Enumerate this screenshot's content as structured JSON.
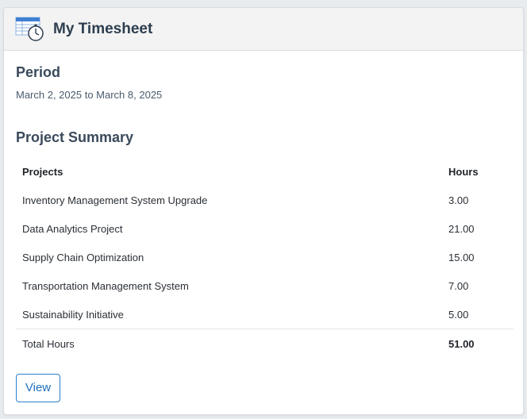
{
  "header": {
    "title": "My Timesheet",
    "icon": "timesheet-stopwatch-icon"
  },
  "period": {
    "heading": "Period",
    "range": "March 2, 2025 to March 8, 2025"
  },
  "summary": {
    "heading": "Project Summary",
    "columns": {
      "projects": "Projects",
      "hours": "Hours"
    },
    "rows": [
      {
        "project": "Inventory Management System Upgrade",
        "hours": "3.00"
      },
      {
        "project": "Data Analytics Project",
        "hours": "21.00"
      },
      {
        "project": "Supply Chain Optimization",
        "hours": "15.00"
      },
      {
        "project": "Transportation Management System",
        "hours": "7.00"
      },
      {
        "project": "Sustainability Initiative",
        "hours": "5.00"
      }
    ],
    "total": {
      "label": "Total Hours",
      "value": "51.00"
    }
  },
  "actions": {
    "view_label": "View"
  },
  "colors": {
    "accent": "#1f6fc0",
    "heading": "#2d3e50"
  }
}
